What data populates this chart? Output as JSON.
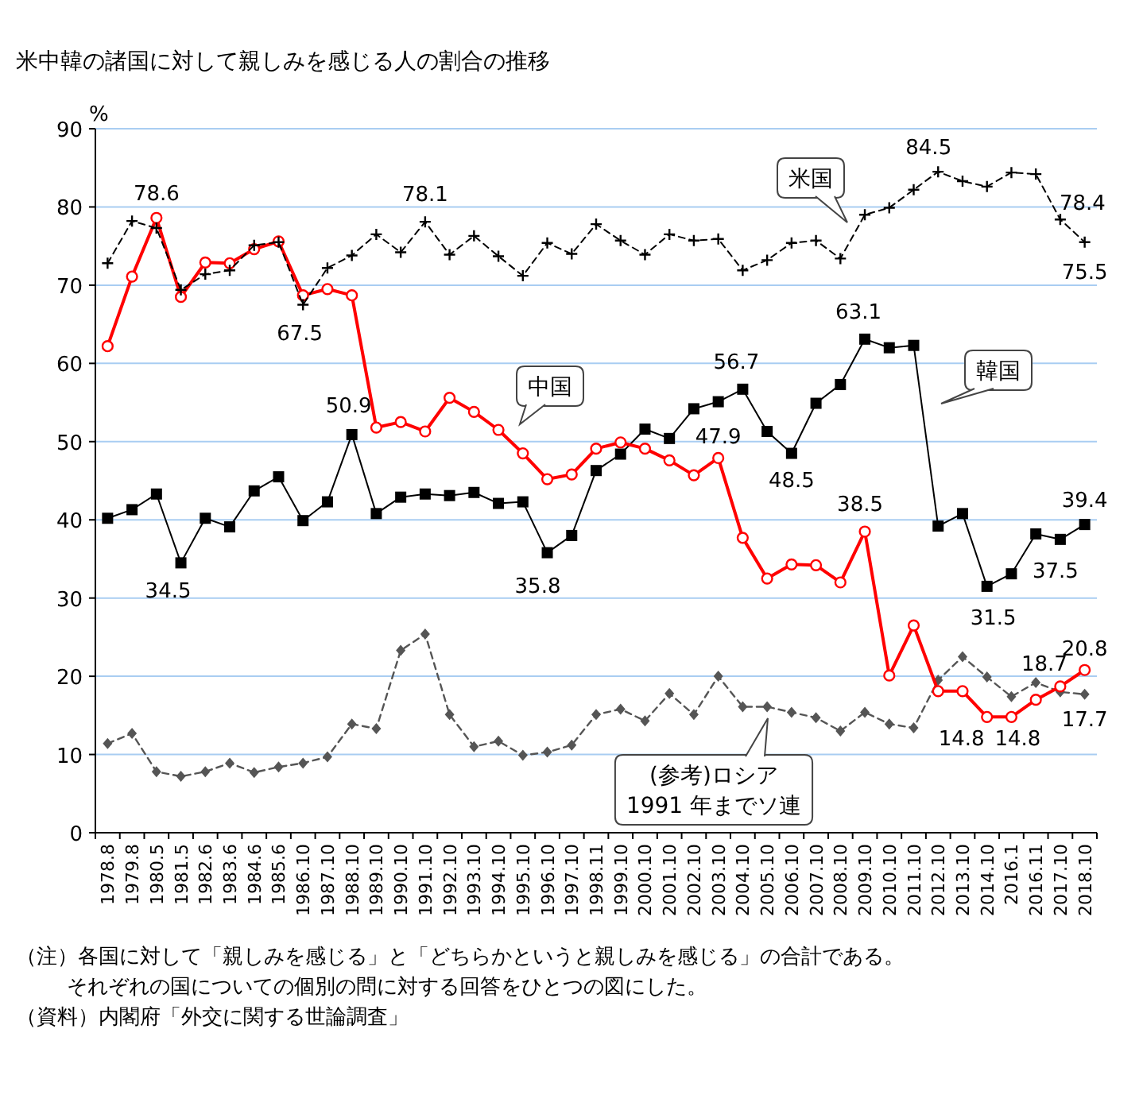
{
  "chart_data": {
    "type": "line",
    "title": "米中韓の諸国に対して親しみを感じる人の割合の推移",
    "ylabel": "%",
    "categories": [
      "1978.8",
      "1979.8",
      "1980.5",
      "1981.5",
      "1982.6",
      "1983.6",
      "1984.6",
      "1985.6",
      "1986.10",
      "1987.10",
      "1988.10",
      "1989.10",
      "1990.10",
      "1991.10",
      "1992.10",
      "1993.10",
      "1994.10",
      "1995.10",
      "1996.10",
      "1997.10",
      "1998.11",
      "1999.10",
      "2000.10",
      "2001.10",
      "2002.10",
      "2003.10",
      "2004.10",
      "2005.10",
      "2006.10",
      "2007.10",
      "2008.10",
      "2009.10",
      "2010.10",
      "2011.10",
      "2012.10",
      "2013.10",
      "2014.10",
      "2016.1",
      "2016.11",
      "2017.10",
      "2018.10"
    ],
    "series": [
      {
        "name": "米国",
        "color": "#000000",
        "marker": "cross",
        "line_style": "dashed",
        "values": [
          72.8,
          78.2,
          77.3,
          69.4,
          71.4,
          71.9,
          75.1,
          75.5,
          67.5,
          72.2,
          73.8,
          76.5,
          74.2,
          78.1,
          73.9,
          76.3,
          73.7,
          71.2,
          75.4,
          74.0,
          77.8,
          75.7,
          73.9,
          76.5,
          75.7,
          75.9,
          71.9,
          73.2,
          75.4,
          75.7,
          73.4,
          79.0,
          79.9,
          82.2,
          84.5,
          83.3,
          82.6,
          84.4,
          84.2,
          78.4,
          75.5
        ]
      },
      {
        "name": "中国",
        "color": "#ff0000",
        "marker": "circle",
        "line_style": "solid",
        "values": [
          62.2,
          71.1,
          78.6,
          68.5,
          72.9,
          72.8,
          74.6,
          75.6,
          68.7,
          69.5,
          68.7,
          51.8,
          52.5,
          51.3,
          55.6,
          53.8,
          51.5,
          48.5,
          45.2,
          45.8,
          49.1,
          49.9,
          49.1,
          47.6,
          45.7,
          47.9,
          37.7,
          32.5,
          34.3,
          34.2,
          32.0,
          38.5,
          20.1,
          26.5,
          18.1,
          18.1,
          14.8,
          14.8,
          17.0,
          18.7,
          20.8
        ]
      },
      {
        "name": "韓国",
        "color": "#000000",
        "marker": "square",
        "line_style": "solid",
        "values": [
          40.2,
          41.3,
          43.3,
          34.5,
          40.2,
          39.1,
          43.7,
          45.5,
          39.9,
          42.3,
          50.9,
          40.8,
          42.9,
          43.3,
          43.1,
          43.5,
          42.1,
          42.3,
          35.8,
          38.0,
          46.3,
          48.4,
          51.6,
          50.4,
          54.2,
          55.1,
          56.7,
          51.3,
          48.5,
          54.9,
          57.3,
          63.1,
          62.0,
          62.3,
          39.2,
          40.8,
          31.5,
          33.1,
          38.2,
          37.5,
          39.4
        ]
      },
      {
        "name": "(参考)ロシア\n1991 年までソ連",
        "color": "#555555",
        "marker": "diamond",
        "line_style": "dashed",
        "values": [
          11.4,
          12.7,
          7.8,
          7.2,
          7.8,
          8.9,
          7.7,
          8.4,
          8.9,
          9.7,
          13.9,
          13.3,
          23.3,
          25.4,
          15.1,
          11.0,
          11.7,
          9.9,
          10.3,
          11.2,
          15.1,
          15.8,
          14.3,
          17.8,
          15.1,
          20.0,
          16.1,
          16.1,
          15.4,
          14.7,
          13.0,
          15.4,
          13.9,
          13.4,
          19.5,
          22.5,
          19.9,
          17.4,
          19.2,
          18.0,
          17.7
        ]
      }
    ],
    "ylim": [
      0,
      90
    ],
    "yticks": [
      0,
      10,
      20,
      30,
      40,
      50,
      60,
      70,
      80,
      90
    ],
    "grid": "y",
    "annotations": [
      {
        "text": "78.6",
        "x": "1980.5",
        "y": 78.6
      },
      {
        "text": "67.5",
        "x": "1986.10",
        "y": 67.5
      },
      {
        "text": "78.1",
        "x": "1991.10",
        "y": 78.1
      },
      {
        "text": "50.9",
        "x": "1988.10",
        "y": 50.9
      },
      {
        "text": "34.5",
        "x": "1981.5",
        "y": 34.5
      },
      {
        "text": "35.8",
        "x": "1996.10",
        "y": 35.8
      },
      {
        "text": "56.7",
        "x": "2004.10",
        "y": 56.7
      },
      {
        "text": "47.9",
        "x": "2003.10",
        "y": 47.9
      },
      {
        "text": "48.5",
        "x": "2006.10",
        "y": 48.5
      },
      {
        "text": "63.1",
        "x": "2009.10",
        "y": 63.1
      },
      {
        "text": "38.5",
        "x": "2009.10",
        "y": 38.5
      },
      {
        "text": "31.5",
        "x": "2014.10",
        "y": 31.5
      },
      {
        "text": "37.5",
        "x": "2017.10",
        "y": 37.5
      },
      {
        "text": "39.4",
        "x": "2018.10",
        "y": 39.4
      },
      {
        "text": "84.5",
        "x": "2012.10",
        "y": 84.5
      },
      {
        "text": "78.4",
        "x": "2017.10",
        "y": 78.4
      },
      {
        "text": "75.5",
        "x": "2018.10",
        "y": 75.5
      },
      {
        "text": "20.8",
        "x": "2018.10",
        "y": 20.8
      },
      {
        "text": "18.7",
        "x": "2017.10",
        "y": 18.7
      },
      {
        "text": "17.7",
        "x": "2018.10",
        "y": 17.7
      },
      {
        "text": "14.8",
        "x": "2014.10",
        "y": 14.8
      },
      {
        "text": "14.8",
        "x": "2016.1",
        "y": 14.8
      },
      "（注）各国に対して「親しみを感じる」と「どちらかというと親しみを感じる」の合計である。",
      "それぞれの国についての個別の問に対する回答をひとつの図にした。",
      "（資料）内閣府「外交に関する世論調査」"
    ]
  }
}
